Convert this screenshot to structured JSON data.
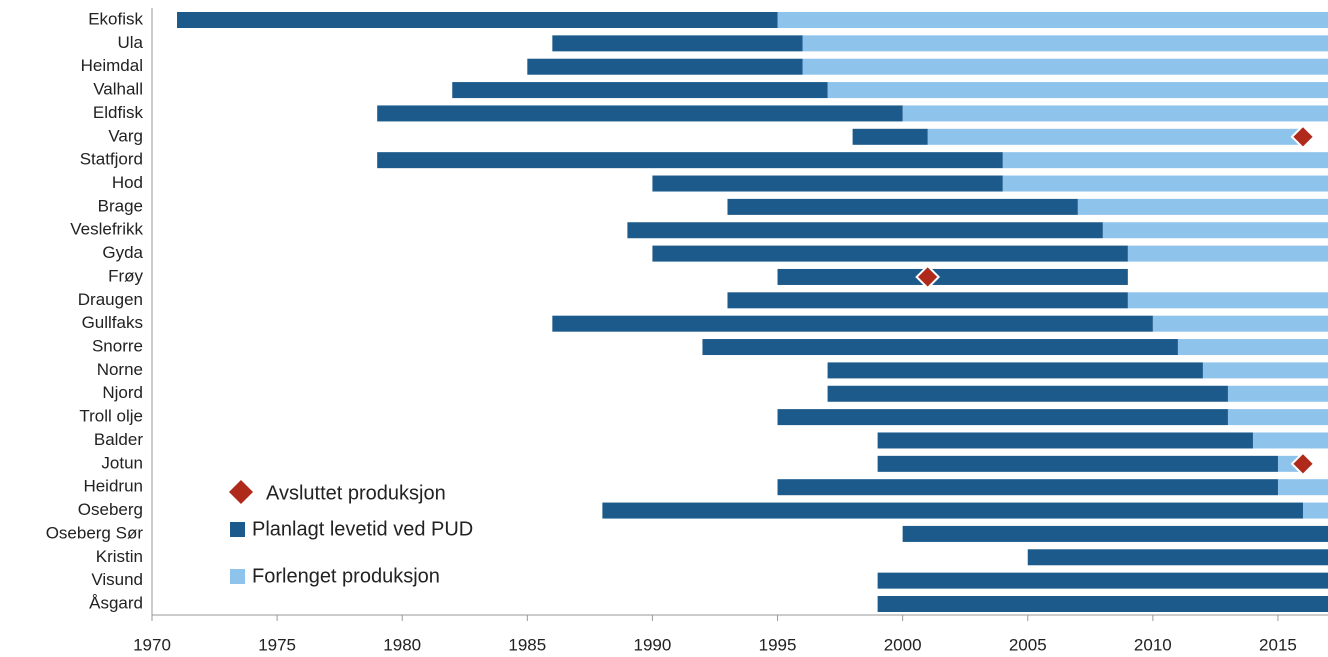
{
  "chart_data": {
    "type": "gantt",
    "categories": [
      "Ekofisk",
      "Ula",
      "Heimdal",
      "Valhall",
      "Eldfisk",
      "Varg",
      "Statfjord",
      "Hod",
      "Brage",
      "Veslefrikk",
      "Gyda",
      "Frøy",
      "Draugen",
      "Gullfaks",
      "Snorre",
      "Norne",
      "Njord",
      "Troll olje",
      "Balder",
      "Jotun",
      "Heidrun",
      "Oseberg",
      "Oseberg Sør",
      "Kristin",
      "Visund",
      "Åsgard"
    ],
    "start": [
      1971,
      1986,
      1985,
      1982,
      1979,
      1998,
      1979,
      1990,
      1993,
      1989,
      1990,
      1995,
      1993,
      1986,
      1992,
      1997,
      1997,
      1995,
      1999,
      1999,
      1995,
      1988,
      2000,
      2005,
      1999,
      1999
    ],
    "series": [
      {
        "name": "Avsluttet produksjon",
        "color": "#b02a1c",
        "marker": "diamond",
        "values": [
          null,
          null,
          null,
          null,
          null,
          2016,
          null,
          null,
          null,
          null,
          null,
          2001,
          null,
          null,
          null,
          null,
          null,
          null,
          null,
          2016,
          null,
          null,
          null,
          null,
          null,
          null
        ]
      },
      {
        "name": "Planlagt levetid ved PUD",
        "color": "#1b5a8a",
        "values": [
          24,
          10,
          11,
          15,
          21,
          3,
          25,
          14,
          14,
          19,
          19,
          14,
          16,
          24,
          19,
          15,
          16,
          18,
          15,
          16,
          20,
          28,
          17,
          12,
          18,
          18
        ]
      },
      {
        "name": "Forlenget produksjon",
        "color": "#8ec3ec",
        "values": [
          22,
          21,
          21,
          20,
          17,
          15,
          13,
          13,
          10,
          9,
          8,
          null,
          8,
          7,
          6,
          5,
          4,
          4,
          3,
          1,
          2,
          1,
          null,
          null,
          null,
          null
        ]
      }
    ],
    "xlim": [
      1970,
      2017
    ],
    "xticks": [
      1970,
      1975,
      1980,
      1985,
      1990,
      1995,
      2000,
      2005,
      2010,
      2015
    ],
    "legend": "lower left"
  }
}
